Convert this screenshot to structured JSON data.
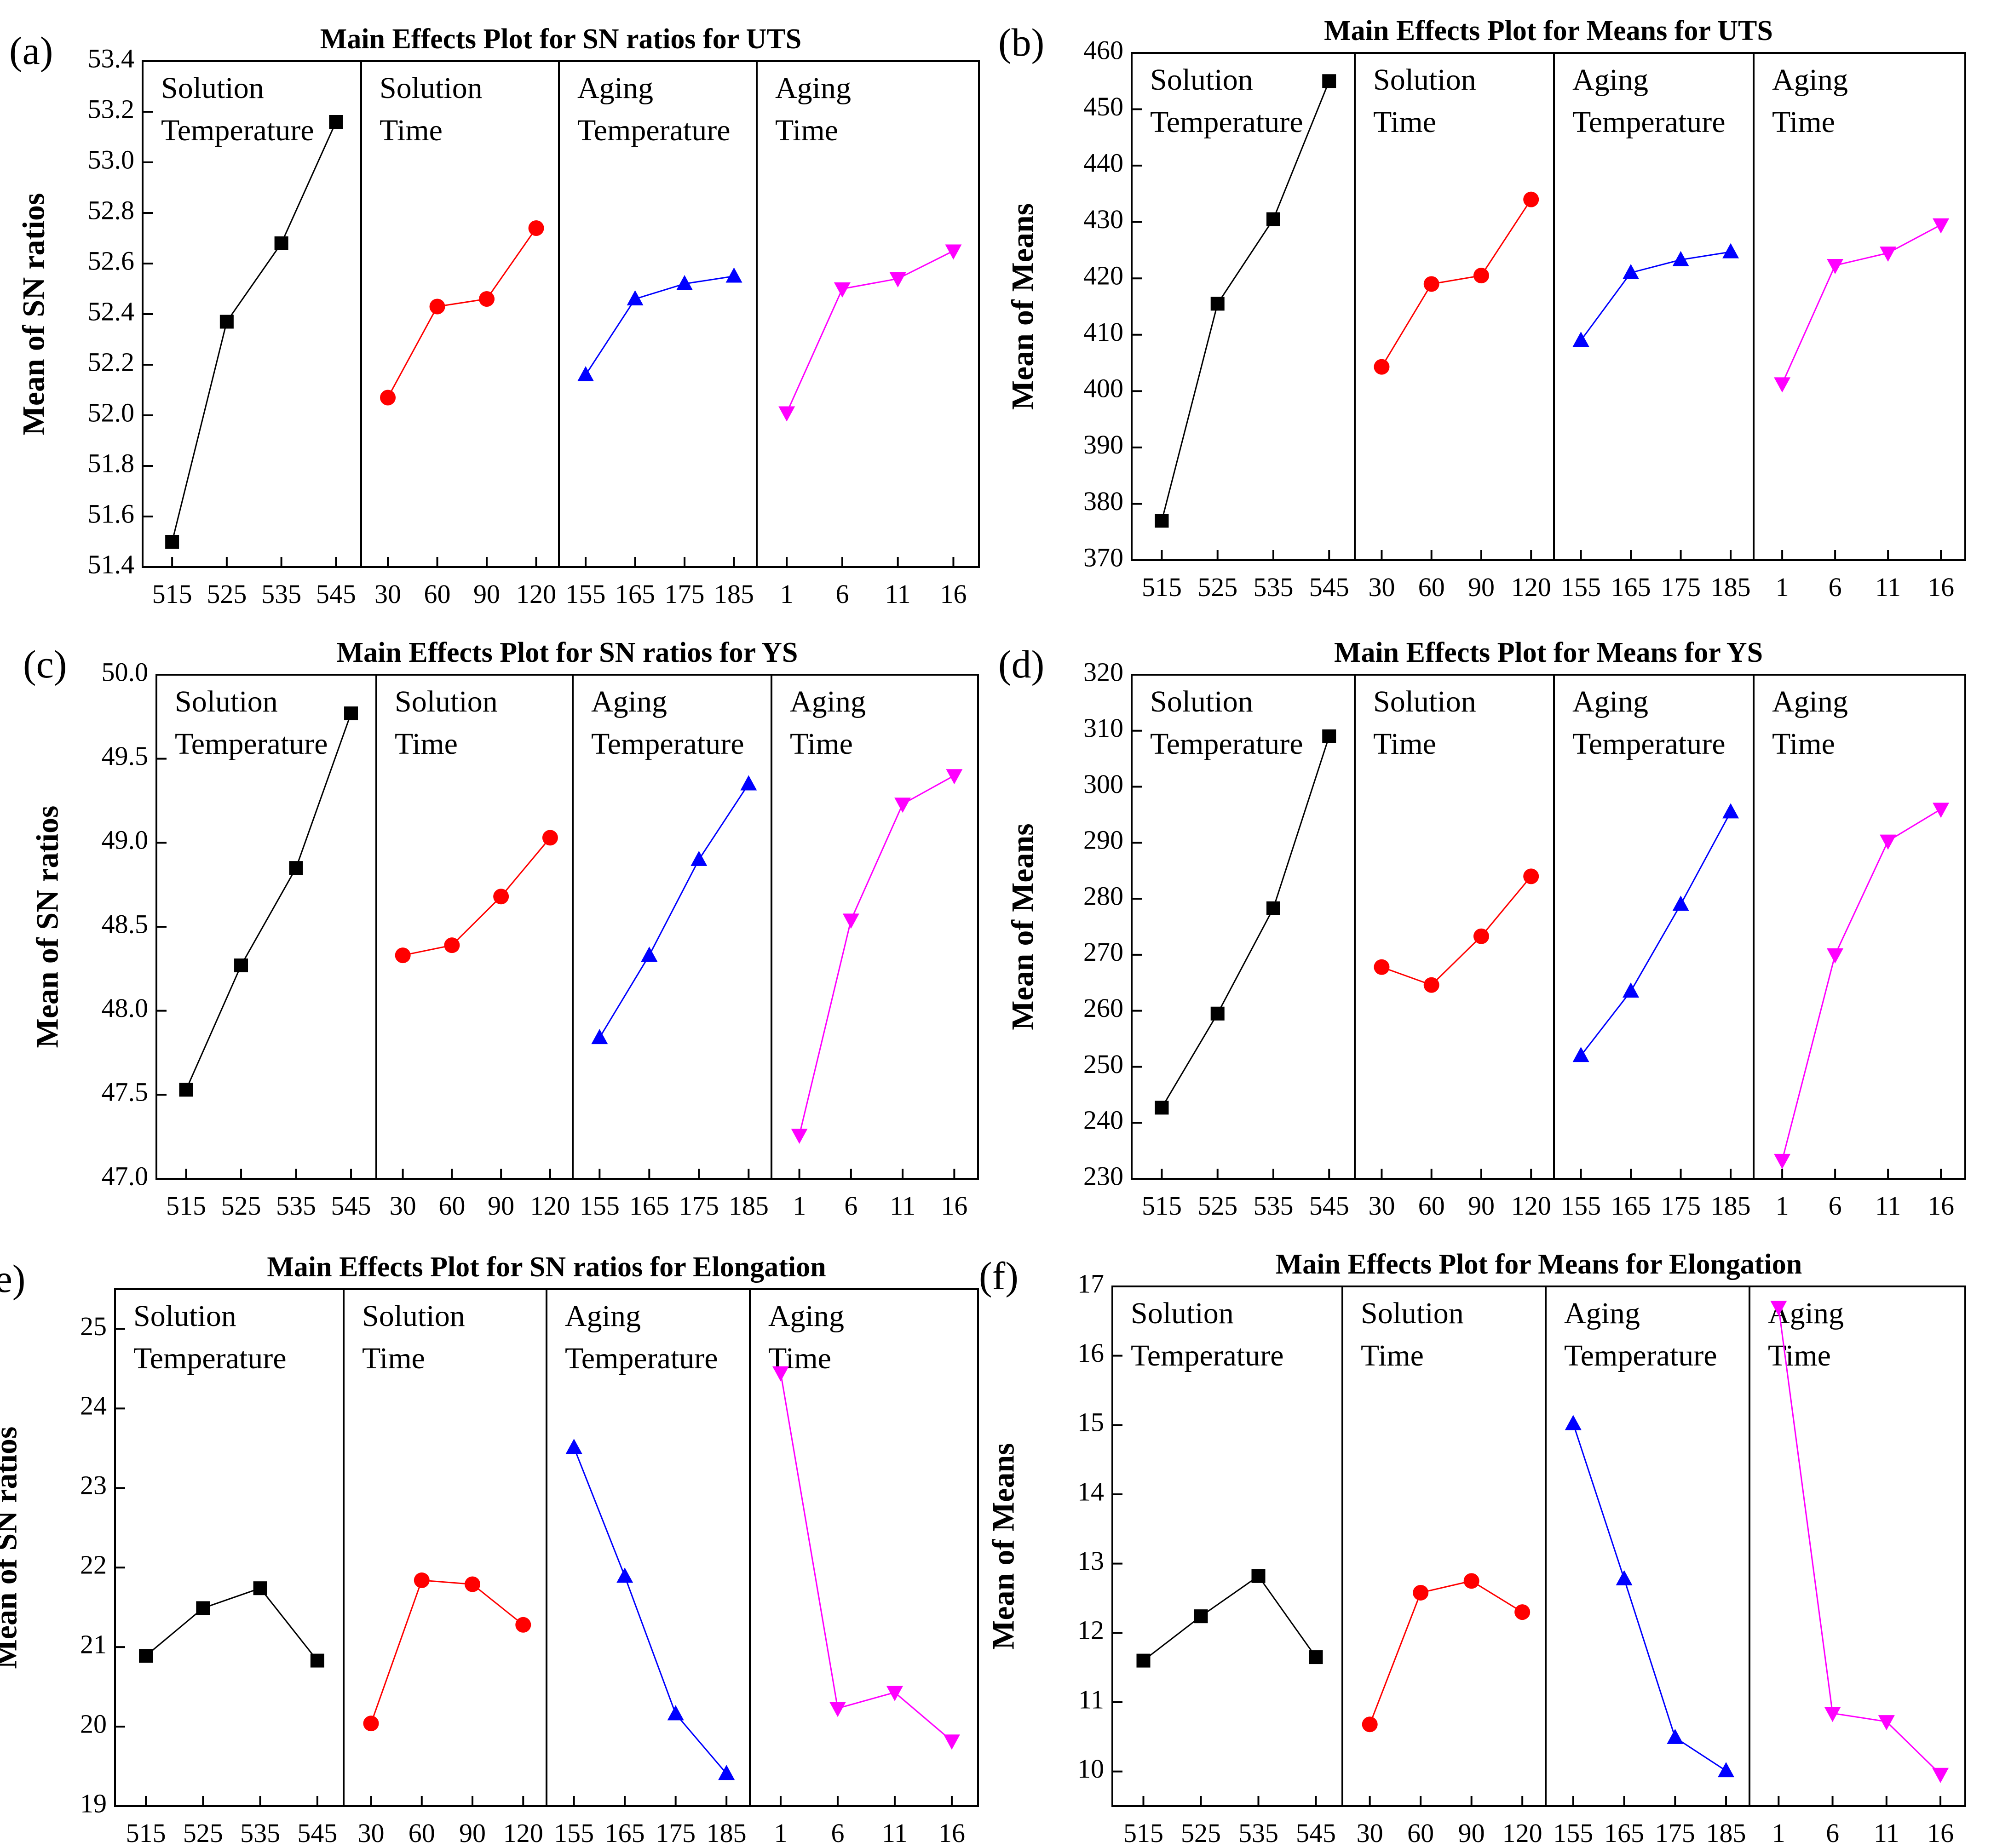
{
  "colors": {
    "Solution Temperature": "#000000",
    "Solution Time": "#ff0000",
    "Aging Temperature": "#0000ff",
    "Aging Time": "#ff00ff"
  },
  "chart_data": [
    {
      "type": "line",
      "panel_label": "(a)",
      "title": "Main Effects Plot for SN ratios for UTS",
      "ylabel": "Mean of SN ratios",
      "ylim": [
        51.4,
        53.4
      ],
      "yticks": [
        "51.4",
        "51.6",
        "51.8",
        "52.0",
        "52.2",
        "52.4",
        "52.6",
        "52.8",
        "53.0",
        "53.2",
        "53.4"
      ],
      "factors": [
        {
          "name_lines": [
            "Solution",
            "Temperature"
          ],
          "marker": "square",
          "colorKey": "Solution Temperature",
          "levels": [
            "515",
            "525",
            "535",
            "545"
          ],
          "values": [
            51.5,
            52.37,
            52.68,
            53.16
          ]
        },
        {
          "name_lines": [
            "Solution",
            "Time"
          ],
          "marker": "circle",
          "colorKey": "Solution Time",
          "levels": [
            "30",
            "60",
            "90",
            "120"
          ],
          "values": [
            52.07,
            52.43,
            52.46,
            52.74
          ]
        },
        {
          "name_lines": [
            "Aging",
            "Temperature"
          ],
          "marker": "triangle-up",
          "colorKey": "Aging Temperature",
          "levels": [
            "155",
            "165",
            "175",
            "185"
          ],
          "values": [
            52.16,
            52.46,
            52.52,
            52.55
          ]
        },
        {
          "name_lines": [
            "Aging",
            "Time"
          ],
          "marker": "triangle-down",
          "colorKey": "Aging Time",
          "levels": [
            "1",
            "6",
            "11",
            "16"
          ],
          "values": [
            52.01,
            52.5,
            52.54,
            52.65
          ]
        }
      ]
    },
    {
      "type": "line",
      "panel_label": "(b)",
      "title": "Main Effects Plot for Means for UTS",
      "ylabel": "Mean of Means",
      "ylim": [
        370,
        460
      ],
      "yticks": [
        "370",
        "380",
        "390",
        "400",
        "410",
        "420",
        "430",
        "440",
        "450",
        "460"
      ],
      "factors": [
        {
          "name_lines": [
            "Solution",
            "Temperature"
          ],
          "marker": "square",
          "colorKey": "Solution Temperature",
          "levels": [
            "515",
            "525",
            "535",
            "545"
          ],
          "values": [
            377.0,
            415.5,
            430.5,
            455.0
          ]
        },
        {
          "name_lines": [
            "Solution",
            "Time"
          ],
          "marker": "circle",
          "colorKey": "Solution Time",
          "levels": [
            "30",
            "60",
            "90",
            "120"
          ],
          "values": [
            404.3,
            419.0,
            420.5,
            434.0
          ]
        },
        {
          "name_lines": [
            "Aging",
            "Temperature"
          ],
          "marker": "triangle-up",
          "colorKey": "Aging Temperature",
          "levels": [
            "155",
            "165",
            "175",
            "185"
          ],
          "values": [
            409.0,
            421.0,
            423.3,
            424.7
          ]
        },
        {
          "name_lines": [
            "Aging",
            "Time"
          ],
          "marker": "triangle-down",
          "colorKey": "Aging Time",
          "levels": [
            "1",
            "6",
            "11",
            "16"
          ],
          "values": [
            401.3,
            422.3,
            424.5,
            429.5
          ]
        }
      ]
    },
    {
      "type": "line",
      "panel_label": "(c)",
      "title": "Main Effects Plot for SN ratios for YS",
      "ylabel": "Mean of SN ratios",
      "ylim": [
        47.0,
        50.0
      ],
      "yticks": [
        "47.0",
        "47.5",
        "48.0",
        "48.5",
        "49.0",
        "49.5",
        "50.0"
      ],
      "factors": [
        {
          "name_lines": [
            "Solution",
            "Temperature"
          ],
          "marker": "square",
          "colorKey": "Solution Temperature",
          "levels": [
            "515",
            "525",
            "535",
            "545"
          ],
          "values": [
            47.53,
            48.27,
            48.85,
            49.77
          ]
        },
        {
          "name_lines": [
            "Solution",
            "Time"
          ],
          "marker": "circle",
          "colorKey": "Solution Time",
          "levels": [
            "30",
            "60",
            "90",
            "120"
          ],
          "values": [
            48.33,
            48.39,
            48.68,
            49.03
          ]
        },
        {
          "name_lines": [
            "Aging",
            "Temperature"
          ],
          "marker": "triangle-up",
          "colorKey": "Aging Temperature",
          "levels": [
            "155",
            "165",
            "175",
            "185"
          ],
          "values": [
            47.84,
            48.33,
            48.9,
            49.35
          ]
        },
        {
          "name_lines": [
            "Aging",
            "Time"
          ],
          "marker": "triangle-down",
          "colorKey": "Aging Time",
          "levels": [
            "1",
            "6",
            "11",
            "16"
          ],
          "values": [
            47.26,
            48.54,
            49.23,
            49.4
          ]
        }
      ]
    },
    {
      "type": "line",
      "panel_label": "(d)",
      "title": "Main Effects Plot for Means for YS",
      "ylabel": "Mean of Means",
      "ylim": [
        230,
        320
      ],
      "yticks": [
        "230",
        "240",
        "250",
        "260",
        "270",
        "280",
        "290",
        "300",
        "310",
        "320"
      ],
      "factors": [
        {
          "name_lines": [
            "Solution",
            "Temperature"
          ],
          "marker": "square",
          "colorKey": "Solution Temperature",
          "levels": [
            "515",
            "525",
            "535",
            "545"
          ],
          "values": [
            242.7,
            259.5,
            278.3,
            309.0
          ]
        },
        {
          "name_lines": [
            "Solution",
            "Time"
          ],
          "marker": "circle",
          "colorKey": "Solution Time",
          "levels": [
            "30",
            "60",
            "90",
            "120"
          ],
          "values": [
            267.8,
            264.6,
            273.3,
            284.0
          ]
        },
        {
          "name_lines": [
            "Aging",
            "Temperature"
          ],
          "marker": "triangle-up",
          "colorKey": "Aging Temperature",
          "levels": [
            "155",
            "165",
            "175",
            "185"
          ],
          "values": [
            252.0,
            263.5,
            279.0,
            295.5
          ]
        },
        {
          "name_lines": [
            "Aging",
            "Time"
          ],
          "marker": "triangle-down",
          "colorKey": "Aging Time",
          "levels": [
            "1",
            "6",
            "11",
            "16"
          ],
          "values": [
            233.3,
            270.0,
            290.3,
            296.0
          ]
        }
      ]
    },
    {
      "type": "line",
      "panel_label": "(e)",
      "title": "Main Effects Plot for SN ratios for Elongation",
      "ylabel": "Mean of SN ratios",
      "ylim": [
        19,
        25.5
      ],
      "yticks": [
        "19",
        "20",
        "21",
        "22",
        "23",
        "24",
        "25"
      ],
      "factors": [
        {
          "name_lines": [
            "Solution",
            "Temperature"
          ],
          "marker": "square",
          "colorKey": "Solution Temperature",
          "levels": [
            "515",
            "525",
            "535",
            "545"
          ],
          "values": [
            20.89,
            21.49,
            21.74,
            20.83
          ]
        },
        {
          "name_lines": [
            "Solution",
            "Time"
          ],
          "marker": "circle",
          "colorKey": "Solution Time",
          "levels": [
            "30",
            "60",
            "90",
            "120"
          ],
          "values": [
            20.04,
            21.84,
            21.79,
            21.28
          ]
        },
        {
          "name_lines": [
            "Aging",
            "Temperature"
          ],
          "marker": "triangle-up",
          "colorKey": "Aging Temperature",
          "levels": [
            "155",
            "165",
            "175",
            "185"
          ],
          "values": [
            23.51,
            21.89,
            20.16,
            19.41
          ]
        },
        {
          "name_lines": [
            "Aging",
            "Time"
          ],
          "marker": "triangle-down",
          "colorKey": "Aging Time",
          "levels": [
            "1",
            "6",
            "11",
            "16"
          ],
          "values": [
            24.45,
            20.23,
            20.43,
            19.82
          ]
        }
      ]
    },
    {
      "type": "line",
      "panel_label": "(f)",
      "title": "Main Effects Plot for Means for Elongation",
      "ylabel": "Mean of Means",
      "ylim": [
        9.5,
        17
      ],
      "yticks": [
        "10",
        "11",
        "12",
        "13",
        "14",
        "15",
        "16",
        "17"
      ],
      "factors": [
        {
          "name_lines": [
            "Solution",
            "Temperature"
          ],
          "marker": "square",
          "colorKey": "Solution Temperature",
          "levels": [
            "515",
            "525",
            "535",
            "545"
          ],
          "values": [
            11.6,
            12.24,
            12.82,
            11.65
          ]
        },
        {
          "name_lines": [
            "Solution",
            "Time"
          ],
          "marker": "circle",
          "colorKey": "Solution Time",
          "levels": [
            "30",
            "60",
            "90",
            "120"
          ],
          "values": [
            10.68,
            12.58,
            12.75,
            12.3
          ]
        },
        {
          "name_lines": [
            "Aging",
            "Temperature"
          ],
          "marker": "triangle-up",
          "colorKey": "Aging Temperature",
          "levels": [
            "155",
            "165",
            "175",
            "185"
          ],
          "values": [
            15.02,
            12.78,
            10.49,
            10.01
          ]
        },
        {
          "name_lines": [
            "Aging",
            "Time"
          ],
          "marker": "triangle-down",
          "colorKey": "Aging Time",
          "levels": [
            "1",
            "6",
            "11",
            "16"
          ],
          "values": [
            16.7,
            10.84,
            10.72,
            9.96
          ]
        }
      ]
    }
  ]
}
